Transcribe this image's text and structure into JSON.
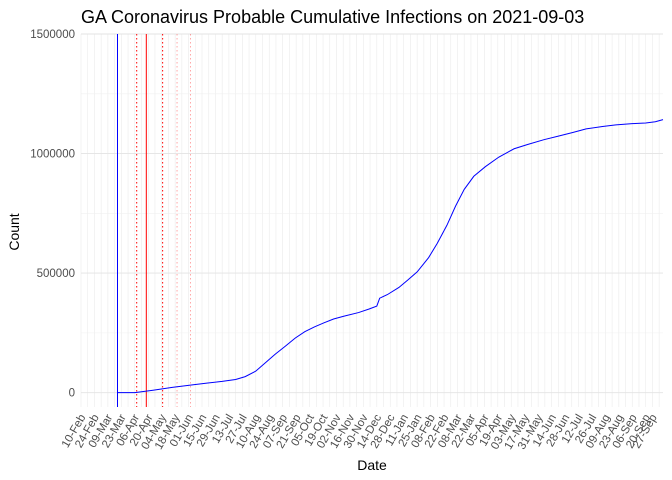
{
  "chart_data": {
    "type": "line",
    "title": "GA Coronavirus Probable Cumulative Infections on 2021-09-03",
    "xlabel": "Date",
    "ylabel": "Count",
    "ylim": [
      -60000,
      1500000
    ],
    "yticks": [
      0,
      500000,
      1000000,
      1500000
    ],
    "ytick_labels": [
      "0",
      "500000",
      "1000000",
      "1500000"
    ],
    "xlim": [
      "2020-02-05",
      "2021-10-03"
    ],
    "grid": true,
    "line_color": "#0000ff",
    "xtick_labels": [
      {
        "date": "2020-02-10",
        "label": "10-Feb"
      },
      {
        "date": "2020-02-24",
        "label": "24-Feb"
      },
      {
        "date": "2020-03-09",
        "label": "09-Mar"
      },
      {
        "date": "2020-03-23",
        "label": "23-Mar"
      },
      {
        "date": "2020-04-06",
        "label": "06-Apr"
      },
      {
        "date": "2020-04-20",
        "label": "20-Apr"
      },
      {
        "date": "2020-05-04",
        "label": "04-May"
      },
      {
        "date": "2020-05-18",
        "label": "18-May"
      },
      {
        "date": "2020-06-01",
        "label": "01-Jun"
      },
      {
        "date": "2020-06-15",
        "label": "15-Jun"
      },
      {
        "date": "2020-06-29",
        "label": "29-Jun"
      },
      {
        "date": "2020-07-13",
        "label": "13-Jul"
      },
      {
        "date": "2020-07-27",
        "label": "27-Jul"
      },
      {
        "date": "2020-08-10",
        "label": "10-Aug"
      },
      {
        "date": "2020-08-24",
        "label": "24-Aug"
      },
      {
        "date": "2020-09-07",
        "label": "07-Sep"
      },
      {
        "date": "2020-09-21",
        "label": "21-Sep"
      },
      {
        "date": "2020-10-05",
        "label": "05-Oct"
      },
      {
        "date": "2020-10-19",
        "label": "19-Oct"
      },
      {
        "date": "2020-11-02",
        "label": "02-Nov"
      },
      {
        "date": "2020-11-16",
        "label": "16-Nov"
      },
      {
        "date": "2020-11-30",
        "label": "30-Nov"
      },
      {
        "date": "2020-12-14",
        "label": "14-Dec"
      },
      {
        "date": "2020-12-28",
        "label": "28-Dec"
      },
      {
        "date": "2021-01-11",
        "label": "11-Jan"
      },
      {
        "date": "2021-01-25",
        "label": "25-Jan"
      },
      {
        "date": "2021-02-08",
        "label": "08-Feb"
      },
      {
        "date": "2021-02-22",
        "label": "22-Feb"
      },
      {
        "date": "2021-03-08",
        "label": "08-Mar"
      },
      {
        "date": "2021-03-22",
        "label": "22-Mar"
      },
      {
        "date": "2021-04-05",
        "label": "05-Apr"
      },
      {
        "date": "2021-04-19",
        "label": "19-Apr"
      },
      {
        "date": "2021-05-03",
        "label": "03-May"
      },
      {
        "date": "2021-05-17",
        "label": "17-May"
      },
      {
        "date": "2021-05-31",
        "label": "31-May"
      },
      {
        "date": "2021-06-14",
        "label": "14-Jun"
      },
      {
        "date": "2021-06-28",
        "label": "28-Jun"
      },
      {
        "date": "2021-07-12",
        "label": "12-Jul"
      },
      {
        "date": "2021-07-26",
        "label": "26-Jul"
      },
      {
        "date": "2021-08-09",
        "label": "09-Aug"
      },
      {
        "date": "2021-08-23",
        "label": "23-Aug"
      },
      {
        "date": "2021-09-06",
        "label": "06-Sep"
      },
      {
        "date": "2021-09-20",
        "label": "20-Sep"
      },
      {
        "date": "2021-09-27",
        "label": "27-Sep"
      }
    ],
    "vlines": [
      {
        "date": "2020-03-14",
        "color": "#0000ff",
        "style": "solid"
      },
      {
        "date": "2020-04-03",
        "color": "#ff0000",
        "style": "dotted"
      },
      {
        "date": "2020-04-13",
        "color": "#ff0000",
        "style": "solid"
      },
      {
        "date": "2020-04-30",
        "color": "#ff0000",
        "style": "dotted"
      },
      {
        "date": "2020-05-15",
        "color": "#ff0000",
        "style": "dotted_light"
      },
      {
        "date": "2020-05-29",
        "color": "#ff0000",
        "style": "dotted_light"
      }
    ],
    "series": [
      {
        "points": [
          [
            "2020-03-14",
            0
          ],
          [
            "2020-04-01",
            0
          ],
          [
            "2020-04-20",
            10000
          ],
          [
            "2020-05-10",
            22000
          ],
          [
            "2020-06-01",
            33000
          ],
          [
            "2020-06-15",
            40000
          ],
          [
            "2020-07-01",
            47000
          ],
          [
            "2020-07-15",
            55000
          ],
          [
            "2020-07-25",
            67000
          ],
          [
            "2020-08-05",
            90000
          ],
          [
            "2020-08-15",
            125000
          ],
          [
            "2020-08-25",
            160000
          ],
          [
            "2020-09-05",
            195000
          ],
          [
            "2020-09-15",
            228000
          ],
          [
            "2020-09-25",
            255000
          ],
          [
            "2020-10-05",
            275000
          ],
          [
            "2020-10-15",
            292000
          ],
          [
            "2020-10-25",
            308000
          ],
          [
            "2020-11-05",
            320000
          ],
          [
            "2020-11-20",
            335000
          ],
          [
            "2020-12-01",
            350000
          ],
          [
            "2020-12-09",
            362000
          ],
          [
            "2020-12-12",
            395000
          ],
          [
            "2020-12-20",
            410000
          ],
          [
            "2021-01-01",
            440000
          ],
          [
            "2021-01-10",
            470000
          ],
          [
            "2021-01-20",
            505000
          ],
          [
            "2021-02-01",
            565000
          ],
          [
            "2021-02-10",
            625000
          ],
          [
            "2021-02-20",
            700000
          ],
          [
            "2021-03-01",
            780000
          ],
          [
            "2021-03-10",
            850000
          ],
          [
            "2021-03-20",
            905000
          ],
          [
            "2021-04-01",
            945000
          ],
          [
            "2021-04-15",
            985000
          ],
          [
            "2021-05-01",
            1020000
          ],
          [
            "2021-05-15",
            1038000
          ],
          [
            "2021-06-01",
            1058000
          ],
          [
            "2021-06-15",
            1072000
          ],
          [
            "2021-07-01",
            1088000
          ],
          [
            "2021-07-15",
            1103000
          ],
          [
            "2021-08-01",
            1113000
          ],
          [
            "2021-08-15",
            1120000
          ],
          [
            "2021-09-01",
            1125000
          ],
          [
            "2021-09-15",
            1128000
          ],
          [
            "2021-09-25",
            1133000
          ],
          [
            "2021-10-03",
            1142000
          ]
        ]
      }
    ]
  }
}
